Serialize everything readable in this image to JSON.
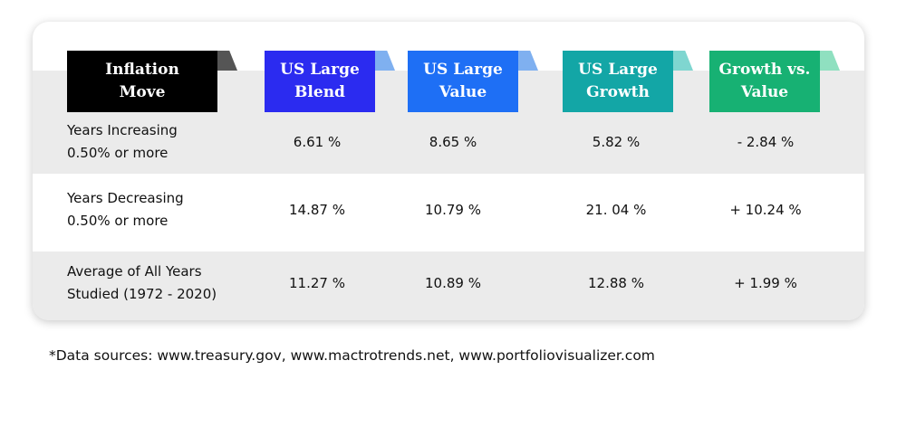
{
  "table": {
    "headers": [
      "Inflation\nMove",
      "US Large\nBlend",
      "US Large\nValue",
      "US Large\nGrowth",
      "Growth vs.\nValue"
    ],
    "rows": [
      [
        "Years Increasing\n0.50% or more",
        "6.61 %",
        "8.65 %",
        "5.82 %",
        "- 2.84 %"
      ],
      [
        "Years Decreasing\n0.50% or more",
        "14.87 %",
        "10.79 %",
        "21. 04 %",
        "+ 10.24 %"
      ],
      [
        "Average of All Years\nStudied (1972 - 2020)",
        "11.27 %",
        "10.89 %",
        "12.88 %",
        "+ 1.99 %"
      ]
    ]
  },
  "footnote": "*Data sources: www.treasury.gov, www.mactrotrends.net, www.portfoliovisualizer.com"
}
